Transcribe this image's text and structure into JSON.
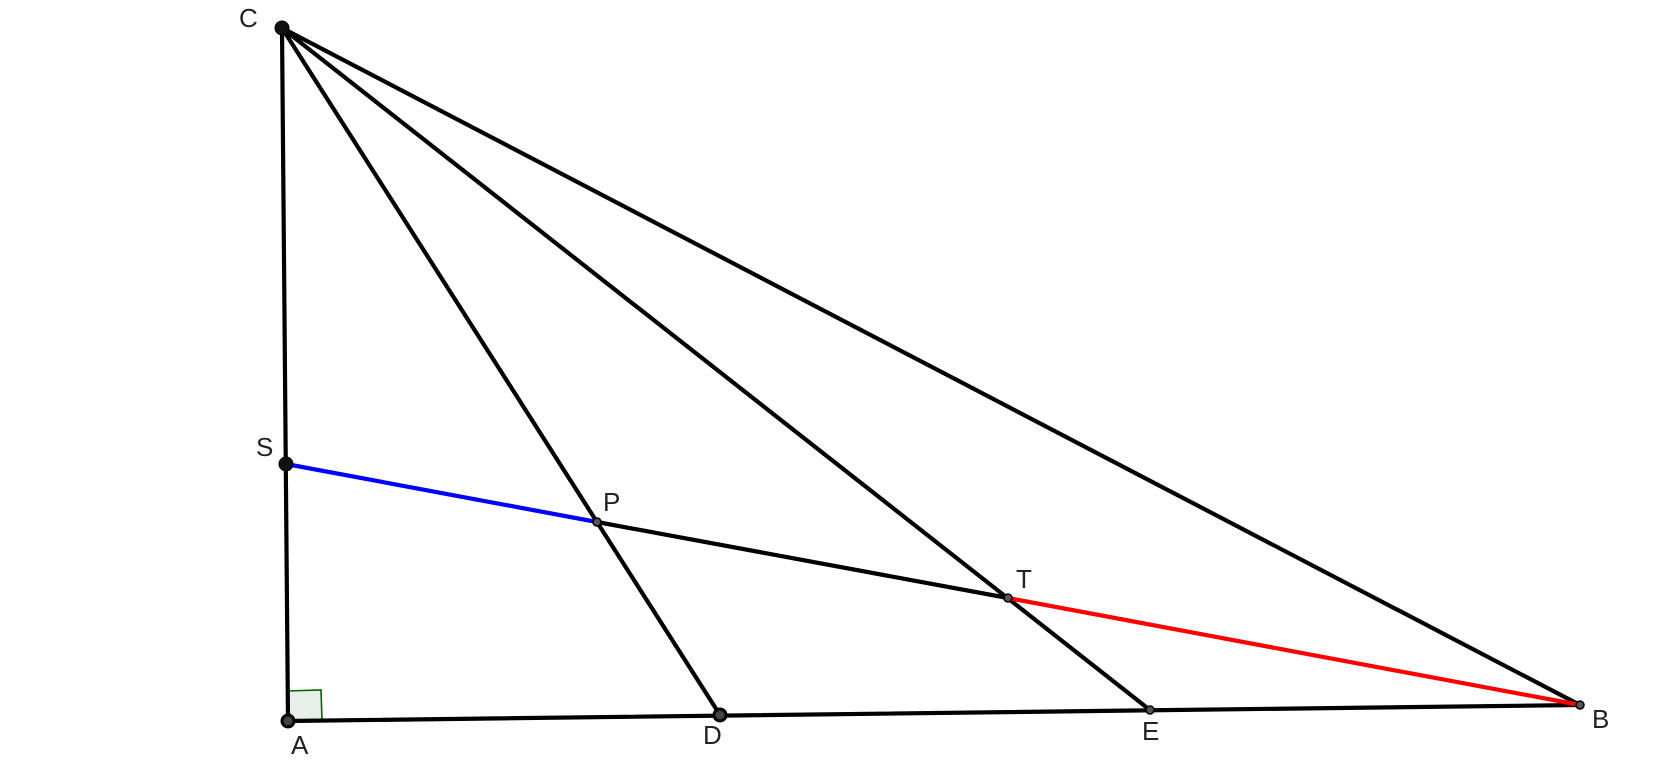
{
  "labels": {
    "C": "C",
    "S": "S",
    "P": "P",
    "T": "T",
    "A": "A",
    "D": "D",
    "E": "E",
    "B": "B"
  },
  "colors": {
    "segment_default": "#000000",
    "segment_SP": "#0000ff",
    "segment_TB": "#ff0000",
    "right_angle_fill": "#e8efe8",
    "right_angle_stroke": "#006400"
  }
}
